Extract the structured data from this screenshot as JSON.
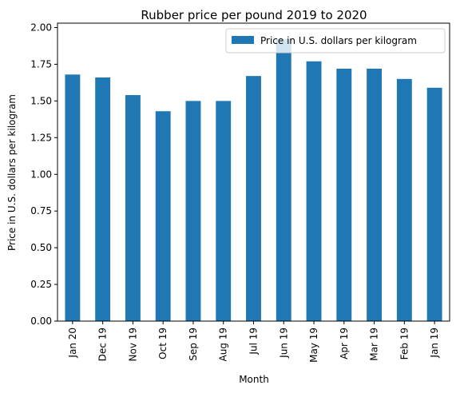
{
  "chart_data": {
    "type": "bar",
    "title": "Rubber price per pound 2019 to 2020",
    "xlabel": "Month",
    "ylabel": "Price in U.S. dollars per kilogram",
    "categories": [
      "Jan 20",
      "Dec 19",
      "Nov 19",
      "Oct 19",
      "Sep 19",
      "Aug 19",
      "Jul 19",
      "Jun 19",
      "May 19",
      "Apr 19",
      "Mar 19",
      "Feb 19",
      "Jan 19"
    ],
    "series": [
      {
        "name": "Price in U.S. dollars per kilogram",
        "values": [
          1.68,
          1.66,
          1.54,
          1.43,
          1.5,
          1.5,
          1.67,
          1.92,
          1.77,
          1.72,
          1.72,
          1.65,
          1.59
        ]
      }
    ],
    "ylim": [
      0,
      2.03
    ],
    "yticks": [
      "0.00",
      "0.25",
      "0.50",
      "0.75",
      "1.00",
      "1.25",
      "1.50",
      "1.75",
      "2.00"
    ],
    "legend_position": "top-right",
    "grid": false,
    "bar_color": "#1f77b4"
  }
}
